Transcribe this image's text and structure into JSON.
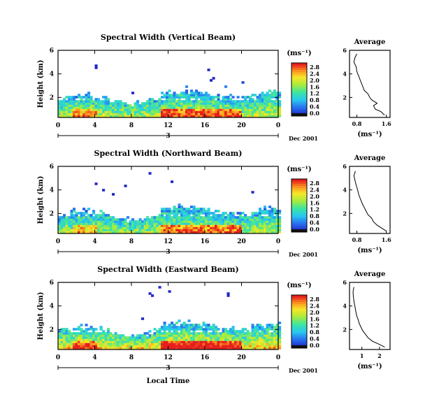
{
  "chart_data": [
    {
      "type": "heatmap",
      "title": "Spectral Width (Vertical Beam)",
      "ylabel": "Height (km)",
      "xticks": [
        "0",
        "4",
        "8",
        "12",
        "16",
        "20",
        "0"
      ],
      "yticks": [
        "2",
        "4",
        "6"
      ],
      "xlim": [
        0,
        24
      ],
      "ylim": [
        0.3,
        6.0
      ],
      "day_label": "3",
      "month_label": "Dec 2001",
      "colorbar": {
        "unit": "(ms⁻¹)",
        "labels": [
          "0.0",
          "0.4",
          "0.8",
          "1.2",
          "1.6",
          "2.0",
          "2.4",
          "2.8"
        ]
      },
      "profile": {
        "title": "Average",
        "xlabel": "(ms⁻¹)",
        "xticks": [
          "0.8",
          "1.6"
        ],
        "yticks": [
          "2",
          "4",
          "6"
        ],
        "xlim": [
          0.6,
          1.7
        ],
        "ylim": [
          0.3,
          6.0
        ],
        "height": [
          0.5,
          0.8,
          1.0,
          1.3,
          1.5,
          1.8,
          2.0,
          2.3,
          2.6,
          3.0,
          3.4,
          3.8,
          4.2,
          4.6,
          5.0,
          5.4,
          5.7
        ],
        "width": [
          1.55,
          1.45,
          1.3,
          1.25,
          1.35,
          1.2,
          1.15,
          1.1,
          1.0,
          0.95,
          0.9,
          0.85,
          0.8,
          0.78,
          0.72,
          0.75,
          0.8
        ]
      }
    },
    {
      "type": "heatmap",
      "title": "Spectral Width (Northward Beam)",
      "ylabel": "Height (km)",
      "xticks": [
        "0",
        "4",
        "8",
        "12",
        "16",
        "20",
        "0"
      ],
      "yticks": [
        "2",
        "4",
        "6"
      ],
      "xlim": [
        0,
        24
      ],
      "ylim": [
        0.3,
        6.0
      ],
      "day_label": "3",
      "month_label": "Dec 2001",
      "colorbar": {
        "unit": "(ms⁻¹)",
        "labels": [
          "0.0",
          "0.4",
          "0.8",
          "1.2",
          "1.6",
          "2.0",
          "2.4",
          "2.8"
        ]
      },
      "profile": {
        "title": "Average",
        "xlabel": "(ms⁻¹)",
        "xticks": [
          "0.8",
          "1.6"
        ],
        "yticks": [
          "2",
          "4",
          "6"
        ],
        "xlim": [
          0.6,
          1.7
        ],
        "ylim": [
          0.3,
          6.0
        ],
        "height": [
          0.5,
          0.8,
          1.0,
          1.3,
          1.6,
          1.9,
          2.2,
          2.5,
          2.8,
          3.2,
          3.6,
          4.0,
          4.4,
          4.8,
          5.2,
          5.6
        ],
        "width": [
          1.6,
          1.45,
          1.35,
          1.25,
          1.2,
          1.1,
          1.05,
          1.0,
          0.95,
          0.9,
          0.85,
          0.82,
          0.78,
          0.75,
          0.72,
          0.76
        ]
      }
    },
    {
      "type": "heatmap",
      "title": "Spectral Width (Eastward Beam)",
      "ylabel": "Height (km)",
      "xlabel": "Local Time",
      "xticks": [
        "0",
        "4",
        "8",
        "12",
        "16",
        "20",
        "0"
      ],
      "yticks": [
        "2",
        "4",
        "6"
      ],
      "xlim": [
        0,
        24
      ],
      "ylim": [
        0.3,
        6.0
      ],
      "day_label": "3",
      "month_label": "Dec 2001",
      "colorbar": {
        "unit": "(ms⁻¹)",
        "labels": [
          "0.0",
          "0.4",
          "0.8",
          "1.2",
          "1.6",
          "2.0",
          "2.4",
          "2.8"
        ]
      },
      "profile": {
        "title": "Average",
        "xlabel": "(ms⁻¹)",
        "xticks": [
          "1",
          "2"
        ],
        "yticks": [
          "2",
          "4",
          "6"
        ],
        "xlim": [
          0.3,
          2.6
        ],
        "ylim": [
          0.3,
          6.0
        ],
        "height": [
          0.5,
          0.8,
          1.0,
          1.3,
          1.6,
          1.9,
          2.2,
          2.5,
          2.8,
          3.2,
          3.6,
          4.0,
          4.4,
          4.8,
          5.2,
          5.6
        ],
        "width": [
          2.3,
          1.9,
          1.6,
          1.35,
          1.2,
          1.05,
          0.95,
          0.85,
          0.8,
          0.7,
          0.65,
          0.6,
          0.55,
          0.52,
          0.5,
          0.55
        ]
      }
    }
  ]
}
